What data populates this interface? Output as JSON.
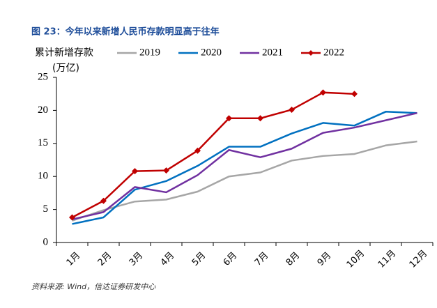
{
  "chart_data": {
    "type": "line",
    "title": "图 23：今年以来新增人民币存款明显高于往年",
    "legend_title": "累计新增存款",
    "y_label": "(万亿)",
    "source": "资料来源: Wind，信达证券研发中心",
    "categories": [
      "1月",
      "2月",
      "3月",
      "4月",
      "5月",
      "6月",
      "7月",
      "8月",
      "9月",
      "10月",
      "11月",
      "12月"
    ],
    "series": [
      {
        "name": "2019",
        "color": "#a6a6a6",
        "values": [
          3.3,
          4.9,
          6.2,
          6.5,
          7.7,
          10.0,
          10.6,
          12.4,
          13.1,
          13.4,
          14.7,
          15.3
        ]
      },
      {
        "name": "2020",
        "color": "#0070c0",
        "values": [
          2.8,
          3.8,
          8.0,
          9.3,
          11.6,
          14.5,
          14.5,
          16.5,
          18.1,
          17.7,
          19.8,
          19.6
        ]
      },
      {
        "name": "2021",
        "color": "#7030a0",
        "values": [
          3.5,
          4.6,
          8.4,
          7.6,
          10.2,
          14.0,
          12.9,
          14.2,
          16.6,
          17.4,
          18.5,
          19.6
        ]
      },
      {
        "name": "2022",
        "color": "#c00000",
        "marker": "diamond",
        "values": [
          3.8,
          6.3,
          10.8,
          10.9,
          13.9,
          18.8,
          18.8,
          20.1,
          22.7,
          22.5,
          null,
          null
        ]
      }
    ],
    "ylim": [
      0,
      25
    ],
    "yticks": [
      0,
      5,
      10,
      15,
      20,
      25
    ],
    "grid": false
  }
}
